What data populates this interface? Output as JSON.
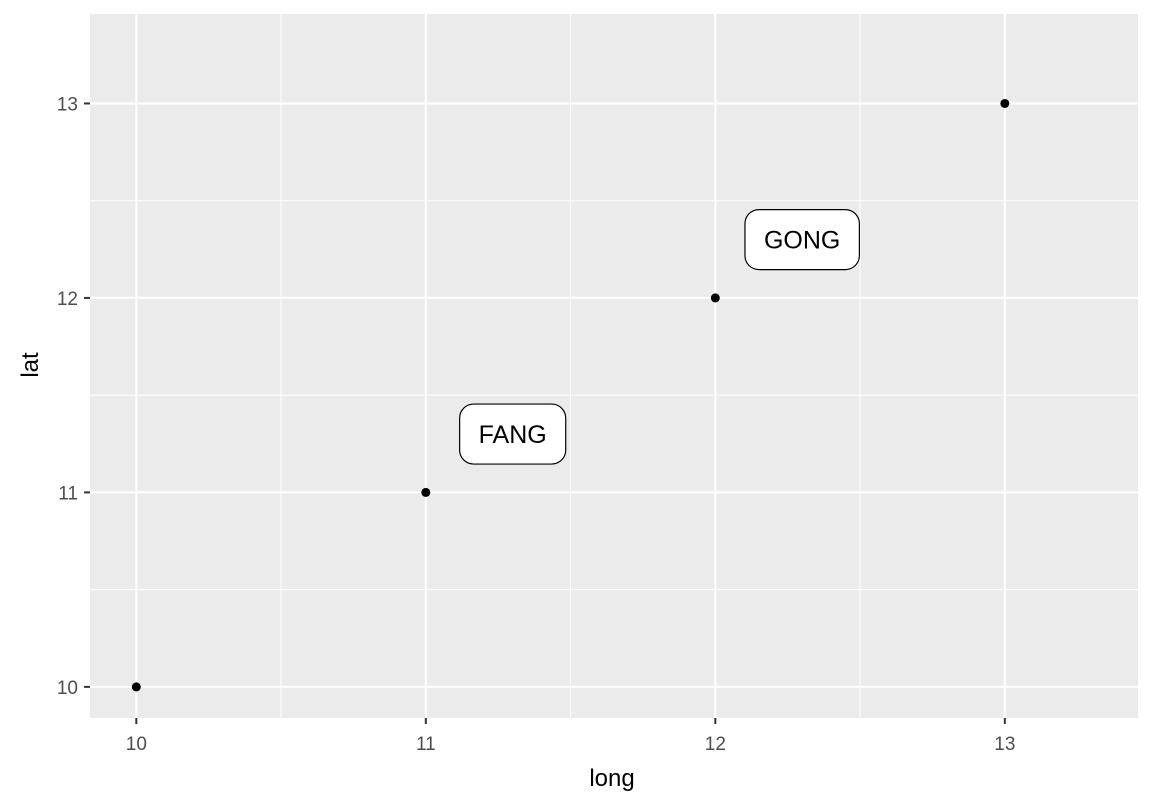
{
  "chart_data": {
    "type": "scatter",
    "title": "",
    "xlabel": "long",
    "ylabel": "lat",
    "xlim": [
      9.84,
      13.46
    ],
    "ylim": [
      9.84,
      13.46
    ],
    "x_ticks": [
      10,
      11,
      12,
      13
    ],
    "y_ticks": [
      10,
      11,
      12,
      13
    ],
    "x_tick_labels": [
      "10",
      "11",
      "12",
      "13"
    ],
    "y_tick_labels": [
      "10",
      "11",
      "12",
      "13"
    ],
    "grid": true,
    "points": [
      {
        "x": 10,
        "y": 10
      },
      {
        "x": 11,
        "y": 11
      },
      {
        "x": 12,
        "y": 12
      },
      {
        "x": 13,
        "y": 13
      }
    ],
    "labels": [
      {
        "text": "FANG",
        "x": 11.3,
        "y": 11.3
      },
      {
        "text": "GONG",
        "x": 12.3,
        "y": 12.3
      }
    ],
    "colors": {
      "panel": "#ebebeb",
      "grid": "#ffffff",
      "point": "#000000",
      "label_fill": "#ffffff",
      "label_border": "#000000"
    }
  }
}
